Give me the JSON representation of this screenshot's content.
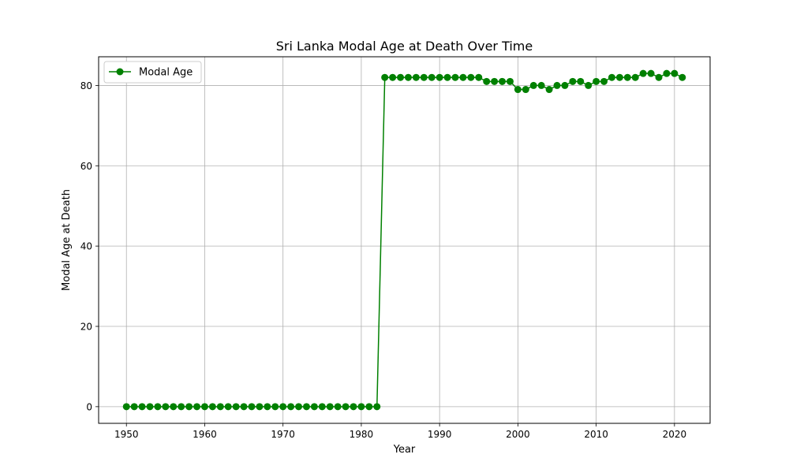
{
  "chart_data": {
    "type": "line",
    "title": "Sri Lanka Modal Age at Death Over Time",
    "xlabel": "Year",
    "ylabel": "Modal Age at Death",
    "xlim": [
      1946.45,
      2024.55
    ],
    "ylim": [
      -4.15,
      87.15
    ],
    "xticks": [
      1950,
      1960,
      1970,
      1980,
      1990,
      2000,
      2010,
      2020
    ],
    "yticks": [
      0,
      20,
      40,
      60,
      80
    ],
    "grid": true,
    "legend_position": "upper left",
    "series": [
      {
        "name": "Modal Age",
        "color": "#008000",
        "marker": "circle",
        "x": [
          1950,
          1951,
          1952,
          1953,
          1954,
          1955,
          1956,
          1957,
          1958,
          1959,
          1960,
          1961,
          1962,
          1963,
          1964,
          1965,
          1966,
          1967,
          1968,
          1969,
          1970,
          1971,
          1972,
          1973,
          1974,
          1975,
          1976,
          1977,
          1978,
          1979,
          1980,
          1981,
          1982,
          1983,
          1984,
          1985,
          1986,
          1987,
          1988,
          1989,
          1990,
          1991,
          1992,
          1993,
          1994,
          1995,
          1996,
          1997,
          1998,
          1999,
          2000,
          2001,
          2002,
          2003,
          2004,
          2005,
          2006,
          2007,
          2008,
          2009,
          2010,
          2011,
          2012,
          2013,
          2014,
          2015,
          2016,
          2017,
          2018,
          2019,
          2020,
          2021
        ],
        "y": [
          0,
          0,
          0,
          0,
          0,
          0,
          0,
          0,
          0,
          0,
          0,
          0,
          0,
          0,
          0,
          0,
          0,
          0,
          0,
          0,
          0,
          0,
          0,
          0,
          0,
          0,
          0,
          0,
          0,
          0,
          0,
          0,
          0,
          82,
          82,
          82,
          82,
          82,
          82,
          82,
          82,
          82,
          82,
          82,
          82,
          82,
          81,
          81,
          81,
          81,
          79,
          79,
          80,
          80,
          79,
          80,
          80,
          81,
          81,
          80,
          81,
          81,
          82,
          82,
          82,
          82,
          83,
          83,
          82,
          83,
          83,
          82
        ]
      }
    ]
  }
}
